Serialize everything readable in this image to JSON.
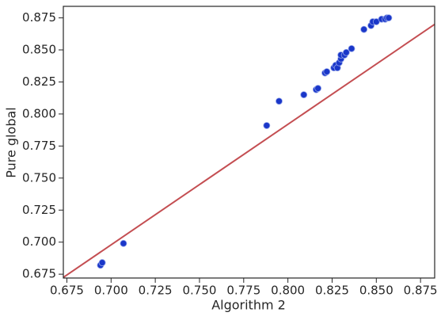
{
  "chart_data": {
    "type": "scatter",
    "xlabel": "Algorithm 2",
    "ylabel": "Pure global",
    "xlim": [
      0.673,
      0.883
    ],
    "ylim": [
      0.672,
      0.884
    ],
    "xticks": [
      {
        "value": 0.675,
        "label": "0.675"
      },
      {
        "value": 0.7,
        "label": "0.700"
      },
      {
        "value": 0.725,
        "label": "0.725"
      },
      {
        "value": 0.75,
        "label": "0.750"
      },
      {
        "value": 0.775,
        "label": "0.775"
      },
      {
        "value": 0.8,
        "label": "0.800"
      },
      {
        "value": 0.825,
        "label": "0.825"
      },
      {
        "value": 0.85,
        "label": "0.850"
      },
      {
        "value": 0.875,
        "label": "0.875"
      }
    ],
    "yticks": [
      {
        "value": 0.675,
        "label": "0.675"
      },
      {
        "value": 0.7,
        "label": "0.700"
      },
      {
        "value": 0.725,
        "label": "0.725"
      },
      {
        "value": 0.75,
        "label": "0.750"
      },
      {
        "value": 0.775,
        "label": "0.775"
      },
      {
        "value": 0.8,
        "label": "0.800"
      },
      {
        "value": 0.825,
        "label": "0.825"
      },
      {
        "value": 0.85,
        "label": "0.850"
      },
      {
        "value": 0.875,
        "label": "0.875"
      }
    ],
    "color": "#1a37c9",
    "x": [
      0.694,
      0.695,
      0.707,
      0.788,
      0.795,
      0.809,
      0.816,
      0.817,
      0.821,
      0.822,
      0.826,
      0.827,
      0.828,
      0.829,
      0.83,
      0.83,
      0.832,
      0.833,
      0.836,
      0.843,
      0.847,
      0.848,
      0.85,
      0.853,
      0.855,
      0.856,
      0.857
    ],
    "y": [
      0.682,
      0.684,
      0.699,
      0.791,
      0.81,
      0.815,
      0.819,
      0.82,
      0.832,
      0.833,
      0.836,
      0.838,
      0.836,
      0.84,
      0.843,
      0.846,
      0.846,
      0.848,
      0.851,
      0.866,
      0.869,
      0.872,
      0.872,
      0.874,
      0.874,
      0.875,
      0.875
    ],
    "reference_line": {
      "x": [
        0.673,
        0.883
      ],
      "y": [
        0.6725,
        0.87
      ],
      "color": "#c44e52"
    }
  }
}
